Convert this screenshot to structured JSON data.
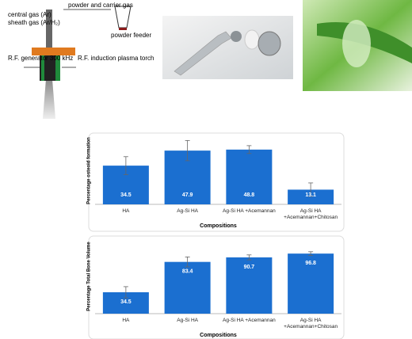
{
  "figure": {
    "powder_gas": "powder and carrier gas",
    "central_gas": "central gas (Ar)",
    "sheath_gas": "sheath gas (Ar/H₂)",
    "powder_feeder": "powder feeder",
    "generator": "R.F. generator 300 kHz",
    "torch": "R.F. induction plasma torch"
  },
  "chart_data": [
    {
      "type": "bar",
      "y_label": "Percentage osteoid formation",
      "x_label": "Compositions",
      "categories": [
        "HA",
        "Ag-Si HA",
        "Ag-Si HA +Acemannan",
        "Ag-Si HA +Acemannan+Chitosan"
      ],
      "values": [
        34.5,
        47.9,
        48.8,
        13.1
      ],
      "errors": [
        8,
        9,
        3.5,
        6
      ],
      "value_labels": [
        "34.5",
        "47.9",
        "48.8",
        "13.1"
      ],
      "label_position": "bottom",
      "color": "#1b6fd0",
      "ylim": [
        0,
        60
      ]
    },
    {
      "type": "bar",
      "y_label": "Percentage Total Bone Volume",
      "x_label": "Compositions",
      "categories": [
        "HA",
        "Ag-Si HA",
        "Ag-Si HA +Acemannan",
        "Ag-Si HA +Acemannan+Chitosan"
      ],
      "values": [
        34.5,
        83.4,
        90.7,
        96.8
      ],
      "errors": [
        9,
        8,
        4,
        3
      ],
      "value_labels": [
        "34.5",
        "83.4",
        "90.7",
        "96.8"
      ],
      "label_position": "top",
      "color": "#1b6fd0",
      "ylim": [
        0,
        120
      ]
    }
  ]
}
